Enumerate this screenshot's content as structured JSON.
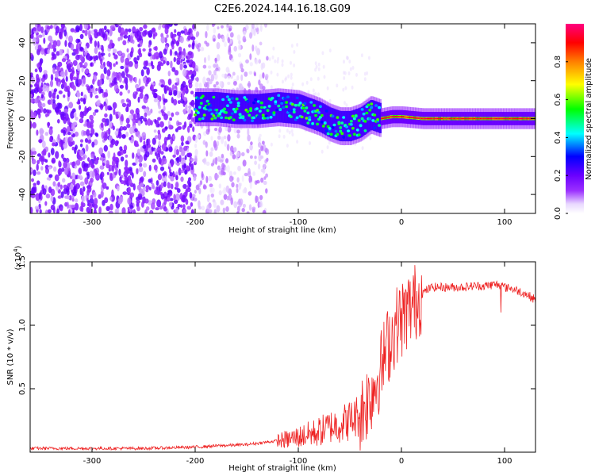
{
  "title": "C2E6.2024.144.16.18.G09",
  "chart_data": [
    {
      "type": "heatmap",
      "xlabel": "Height of straight line (km)",
      "ylabel": "Frequency (Hz)",
      "xlim": [
        -360,
        130
      ],
      "ylim": [
        -50,
        50
      ],
      "x_ticks": [
        -300,
        -200,
        -100,
        0,
        100
      ],
      "y_ticks": [
        -40,
        -20,
        0,
        20,
        40
      ],
      "colorbar": {
        "label": "Normalized spectral amplitude",
        "range": [
          0,
          1
        ],
        "ticks": [
          "0.0",
          "0.2",
          "0.4",
          "0.6",
          "0.8"
        ],
        "colors": [
          "#ffffff",
          "#e8d8ff",
          "#9b30ff",
          "#6a00ff",
          "#0000ff",
          "#00ffff",
          "#00ff00",
          "#ffff00",
          "#ff8000",
          "#ff0000",
          "#ff0080"
        ]
      },
      "regions": [
        {
          "x_range": [
            -360,
            -200
          ],
          "description_level": 0.15
        },
        {
          "x_range": [
            -200,
            -135
          ],
          "description_level": 0.1
        },
        {
          "x_range": [
            -200,
            -20
          ],
          "signal_level": 0.45
        },
        {
          "x_range": [
            -20,
            130
          ],
          "signal_level": 0.85
        }
      ],
      "signal_track": {
        "x": [
          -200,
          -180,
          -160,
          -140,
          -120,
          -100,
          -90,
          -80,
          -70,
          -60,
          -50,
          -40,
          -30,
          -20,
          -10,
          0,
          20,
          50,
          80,
          100,
          130
        ],
        "y": [
          6,
          6,
          5,
          5,
          6,
          5,
          3,
          1,
          -2,
          -4,
          -4,
          -2,
          2,
          0,
          1,
          1,
          0,
          0,
          0,
          0,
          0
        ]
      }
    },
    {
      "type": "line",
      "xlabel": "Height of straight line (km)",
      "ylabel": "SNR (10 * v/v)",
      "y_scale_label": "(x10",
      "y_scale_exponent": "4",
      "y_scale_close": ")",
      "xlim": [
        -360,
        130
      ],
      "ylim": [
        0,
        1.5
      ],
      "x_ticks": [
        -300,
        -200,
        -100,
        0,
        100
      ],
      "y_ticks": [
        "0.5",
        "1.0",
        "1.5"
      ],
      "series": [
        {
          "color": "#ee2222",
          "x": [
            -360,
            -300,
            -250,
            -200,
            -180,
            -150,
            -130,
            -110,
            -100,
            -90,
            -80,
            -70,
            -60,
            -50,
            -40,
            -30,
            -25,
            -20,
            -15,
            -10,
            -5,
            0,
            5,
            10,
            15,
            20,
            25,
            30,
            40,
            50,
            60,
            70,
            80,
            90,
            95,
            100,
            110,
            120,
            130
          ],
          "y": [
            0.03,
            0.03,
            0.03,
            0.04,
            0.05,
            0.06,
            0.08,
            0.1,
            0.12,
            0.14,
            0.16,
            0.2,
            0.22,
            0.25,
            0.3,
            0.45,
            0.55,
            0.65,
            0.8,
            0.9,
            1.0,
            1.05,
            1.1,
            1.15,
            1.2,
            1.25,
            1.28,
            1.3,
            1.3,
            1.3,
            1.3,
            1.31,
            1.31,
            1.32,
            1.32,
            1.3,
            1.28,
            1.25,
            1.2
          ]
        }
      ]
    }
  ]
}
